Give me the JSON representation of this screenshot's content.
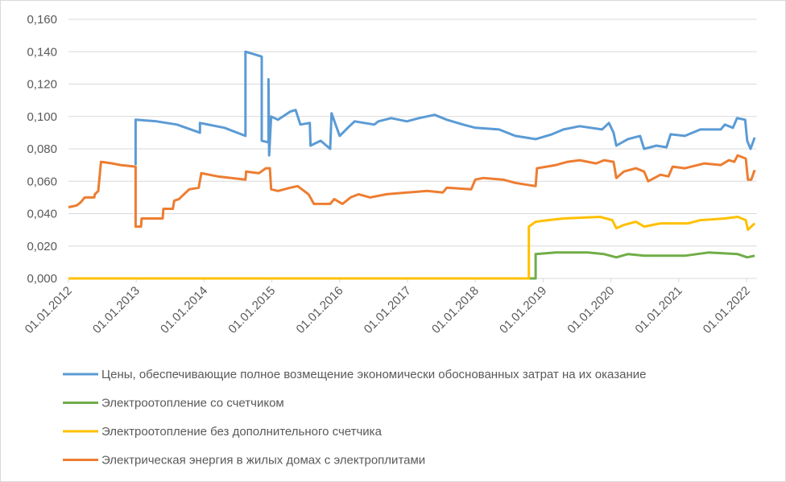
{
  "chart_data": {
    "type": "line",
    "xlim": [
      2012,
      2022.15
    ],
    "xticks": [
      {
        "value": 2012,
        "label": "01.01.2012"
      },
      {
        "value": 2013,
        "label": "01.01.2013"
      },
      {
        "value": 2014,
        "label": "01.01.2014"
      },
      {
        "value": 2015,
        "label": "01.01.2015"
      },
      {
        "value": 2016,
        "label": "01.01.2016"
      },
      {
        "value": 2017,
        "label": "01.01.2017"
      },
      {
        "value": 2018,
        "label": "01.01.2018"
      },
      {
        "value": 2019,
        "label": "01.01.2019"
      },
      {
        "value": 2020,
        "label": "01.01.2020"
      },
      {
        "value": 2021,
        "label": "01.01.2021"
      },
      {
        "value": 2022,
        "label": "01.01.2022"
      }
    ],
    "ylim": [
      0,
      0.16
    ],
    "yticks": [
      {
        "value": 0,
        "label": "0,000"
      },
      {
        "value": 0.02,
        "label": "0,020"
      },
      {
        "value": 0.04,
        "label": "0,040"
      },
      {
        "value": 0.06,
        "label": "0,060"
      },
      {
        "value": 0.08,
        "label": "0,080"
      },
      {
        "value": 0.1,
        "label": "0,100"
      },
      {
        "value": 0.12,
        "label": "0,120"
      },
      {
        "value": 0.14,
        "label": "0,140"
      },
      {
        "value": 0.16,
        "label": "0,160"
      }
    ],
    "grid": true,
    "legend": "bottom",
    "series": [
      {
        "name": "Цены, обеспечивающие полное возмещение экономически обоснованных затрат на их оказание",
        "color": "#5b9bd5",
        "x": [
          2012.99,
          2012.99,
          2013.3,
          2013.6,
          2013.94,
          2013.94,
          2014.3,
          2014.61,
          2014.61,
          2014.85,
          2014.85,
          2014.95,
          2014.95,
          2014.96,
          2014.99,
          2015.09,
          2015.27,
          2015.35,
          2015.42,
          2015.56,
          2015.57,
          2015.72,
          2015.86,
          2015.88,
          2016.0,
          2016.12,
          2016.22,
          2016.51,
          2016.57,
          2016.76,
          2016.99,
          2017.17,
          2017.4,
          2017.58,
          2017.82,
          2018.0,
          2018.35,
          2018.59,
          2018.89,
          2019.13,
          2019.3,
          2019.54,
          2019.87,
          2019.97,
          2020.04,
          2020.08,
          2020.25,
          2020.43,
          2020.49,
          2020.67,
          2020.82,
          2020.88,
          2021.09,
          2021.32,
          2021.62,
          2021.68,
          2021.8,
          2021.86,
          2021.98,
          2022.01,
          2022.06,
          2022.12
        ],
        "values": [
          0.07,
          0.098,
          0.097,
          0.095,
          0.09,
          0.096,
          0.093,
          0.088,
          0.14,
          0.137,
          0.085,
          0.084,
          0.123,
          0.076,
          0.1,
          0.098,
          0.103,
          0.104,
          0.095,
          0.096,
          0.082,
          0.085,
          0.08,
          0.102,
          0.088,
          0.093,
          0.097,
          0.095,
          0.097,
          0.099,
          0.097,
          0.099,
          0.101,
          0.098,
          0.095,
          0.093,
          0.092,
          0.088,
          0.086,
          0.089,
          0.092,
          0.094,
          0.092,
          0.096,
          0.09,
          0.082,
          0.086,
          0.088,
          0.08,
          0.082,
          0.081,
          0.089,
          0.088,
          0.092,
          0.092,
          0.095,
          0.093,
          0.099,
          0.098,
          0.085,
          0.08,
          0.087
        ]
      },
      {
        "name": "Электроотопление со счетчиком",
        "color": "#70ad47",
        "x": [
          2012,
          2018.89,
          2018.89,
          2019.19,
          2019.66,
          2019.9,
          2020.08,
          2020.25,
          2020.49,
          2021.09,
          2021.44,
          2021.87,
          2022.01,
          2022.12
        ],
        "values": [
          0,
          0,
          0.015,
          0.016,
          0.016,
          0.015,
          0.013,
          0.015,
          0.014,
          0.014,
          0.016,
          0.015,
          0.013,
          0.014
        ]
      },
      {
        "name": "Электроотопление без дополнительного счетчика",
        "color": "#ffc000",
        "x": [
          2012,
          2018.79,
          2018.79,
          2018.89,
          2019.07,
          2019.3,
          2019.84,
          2020.02,
          2020.08,
          2020.19,
          2020.37,
          2020.49,
          2020.73,
          2021.14,
          2021.32,
          2021.68,
          2021.87,
          2021.99,
          2022.02,
          2022.12
        ],
        "values": [
          0,
          0,
          0.032,
          0.035,
          0.036,
          0.037,
          0.038,
          0.036,
          0.031,
          0.033,
          0.035,
          0.032,
          0.034,
          0.034,
          0.036,
          0.037,
          0.038,
          0.036,
          0.03,
          0.034
        ]
      },
      {
        "name": "Электрическая энергия в жилых домах с электроплитами",
        "color": "#ed7d31",
        "x": [
          2012,
          2012.12,
          2012.18,
          2012.24,
          2012.38,
          2012.39,
          2012.44,
          2012.48,
          2012.65,
          2012.77,
          2012.99,
          2012.99,
          2013.07,
          2013.08,
          2013.39,
          2013.4,
          2013.54,
          2013.56,
          2013.63,
          2013.78,
          2013.92,
          2013.96,
          2014.2,
          2014.61,
          2014.62,
          2014.81,
          2014.91,
          2014.97,
          2014.99,
          2015.09,
          2015.27,
          2015.38,
          2015.54,
          2015.62,
          2015.86,
          2015.92,
          2016.04,
          2016.16,
          2016.28,
          2016.45,
          2016.69,
          2016.99,
          2017.29,
          2017.52,
          2017.58,
          2017.94,
          2018.0,
          2018.12,
          2018.41,
          2018.59,
          2018.89,
          2018.91,
          2019.19,
          2019.36,
          2019.54,
          2019.78,
          2019.9,
          2020.04,
          2020.08,
          2020.19,
          2020.37,
          2020.49,
          2020.55,
          2020.73,
          2020.85,
          2020.91,
          2021.09,
          2021.38,
          2021.62,
          2021.74,
          2021.82,
          2021.87,
          2021.99,
          2022.02,
          2022.07,
          2022.12
        ],
        "values": [
          0.044,
          0.045,
          0.047,
          0.05,
          0.05,
          0.052,
          0.054,
          0.072,
          0.071,
          0.07,
          0.069,
          0.032,
          0.032,
          0.037,
          0.037,
          0.043,
          0.043,
          0.048,
          0.049,
          0.055,
          0.056,
          0.065,
          0.063,
          0.061,
          0.066,
          0.065,
          0.068,
          0.068,
          0.055,
          0.054,
          0.056,
          0.057,
          0.052,
          0.046,
          0.046,
          0.049,
          0.046,
          0.05,
          0.052,
          0.05,
          0.052,
          0.053,
          0.054,
          0.053,
          0.056,
          0.055,
          0.061,
          0.062,
          0.061,
          0.059,
          0.057,
          0.068,
          0.07,
          0.072,
          0.073,
          0.071,
          0.073,
          0.072,
          0.062,
          0.066,
          0.068,
          0.066,
          0.06,
          0.064,
          0.063,
          0.069,
          0.068,
          0.071,
          0.07,
          0.073,
          0.072,
          0.076,
          0.074,
          0.061,
          0.061,
          0.067
        ]
      }
    ]
  }
}
